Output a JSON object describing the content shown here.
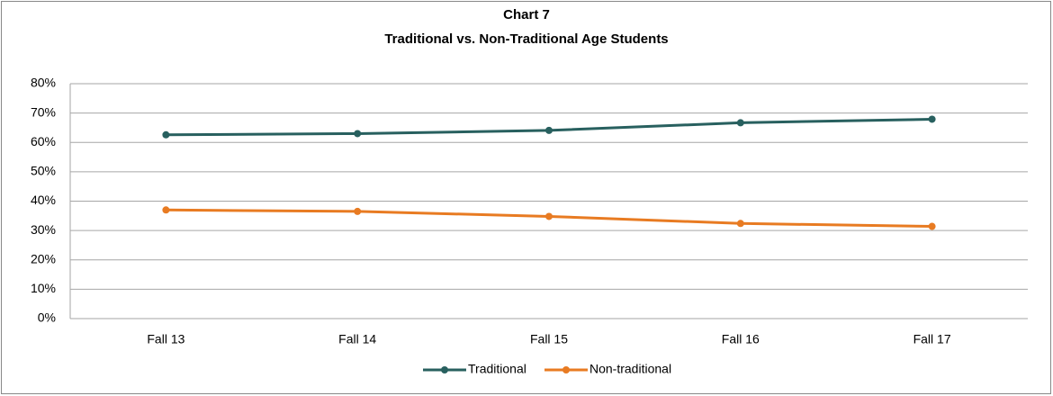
{
  "chart_data": {
    "type": "line",
    "title": "Chart 7",
    "subtitle": "Traditional vs. Non-Traditional Age Students",
    "categories": [
      "Fall 13",
      "Fall 14",
      "Fall 15",
      "Fall 16",
      "Fall 17"
    ],
    "series": [
      {
        "name": "Traditional",
        "color": "#28605f",
        "values": [
          62.6,
          63.0,
          64.1,
          66.7,
          67.9
        ]
      },
      {
        "name": "Non-traditional",
        "color": "#e87b22",
        "values": [
          37.0,
          36.5,
          34.8,
          32.4,
          31.4
        ]
      }
    ],
    "ylim": [
      0,
      80
    ],
    "yticks": [
      {
        "value": 0,
        "label": "0%"
      },
      {
        "value": 10,
        "label": "10%"
      },
      {
        "value": 20,
        "label": "20%"
      },
      {
        "value": 30,
        "label": "30%"
      },
      {
        "value": 40,
        "label": "40%"
      },
      {
        "value": 50,
        "label": "50%"
      },
      {
        "value": 60,
        "label": "60%"
      },
      {
        "value": 70,
        "label": "70%"
      },
      {
        "value": 80,
        "label": "80%"
      }
    ],
    "grid": true,
    "legend": "bottom"
  }
}
